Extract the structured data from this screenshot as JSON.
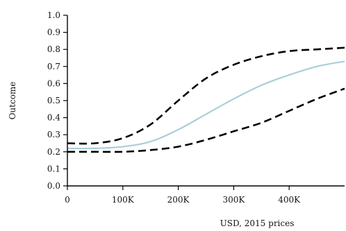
{
  "chart_data": {
    "type": "line",
    "title": "",
    "xlabel": "USD, 2015 prices",
    "ylabel": "Outcome",
    "xlim": [
      0,
      500000
    ],
    "ylim": [
      0,
      1
    ],
    "x_ticks": [
      {
        "value": 0,
        "label": "0"
      },
      {
        "value": 100000,
        "label": "100K"
      },
      {
        "value": 200000,
        "label": "200K"
      },
      {
        "value": 300000,
        "label": "300K"
      },
      {
        "value": 400000,
        "label": "400K"
      }
    ],
    "y_ticks": [
      {
        "value": 0,
        "label": "0.0"
      },
      {
        "value": 0.1,
        "label": "0.1"
      },
      {
        "value": 0.2,
        "label": "0.2"
      },
      {
        "value": 0.3,
        "label": "0.3"
      },
      {
        "value": 0.4,
        "label": "0.4"
      },
      {
        "value": 0.5,
        "label": "0.5"
      },
      {
        "value": 0.6,
        "label": "0.6"
      },
      {
        "value": 0.7,
        "label": "0.7"
      },
      {
        "value": 0.8,
        "label": "0.8"
      },
      {
        "value": 0.9,
        "label": "0.9"
      },
      {
        "value": 1,
        "label": "1.0"
      }
    ],
    "grid": false,
    "series": [
      {
        "role": "upper",
        "color": "#000000",
        "style": "dashed",
        "x": [
          0,
          50000,
          100000,
          150000,
          200000,
          250000,
          300000,
          350000,
          400000,
          450000,
          500000
        ],
        "y": [
          0.25,
          0.25,
          0.28,
          0.36,
          0.5,
          0.63,
          0.71,
          0.76,
          0.79,
          0.8,
          0.81
        ]
      },
      {
        "role": "central",
        "color": "#a9cfd8",
        "style": "solid",
        "x": [
          0,
          50000,
          100000,
          150000,
          200000,
          250000,
          300000,
          350000,
          400000,
          450000,
          500000
        ],
        "y": [
          0.22,
          0.22,
          0.23,
          0.26,
          0.33,
          0.42,
          0.51,
          0.59,
          0.65,
          0.7,
          0.73
        ]
      },
      {
        "role": "lower",
        "color": "#000000",
        "style": "dashed",
        "x": [
          0,
          50000,
          100000,
          150000,
          200000,
          250000,
          300000,
          350000,
          400000,
          450000,
          500000
        ],
        "y": [
          0.2,
          0.2,
          0.2,
          0.21,
          0.23,
          0.27,
          0.32,
          0.37,
          0.44,
          0.51,
          0.57
        ]
      }
    ]
  }
}
